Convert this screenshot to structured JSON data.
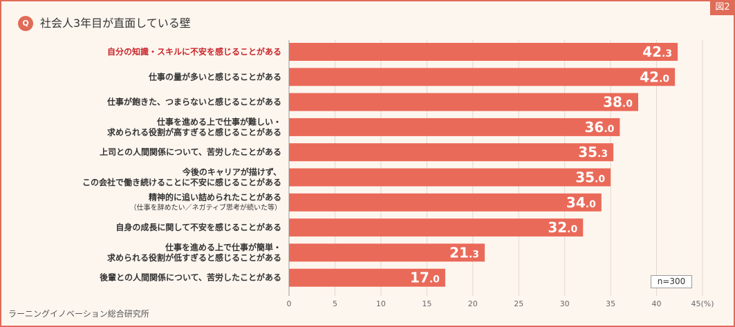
{
  "header": {
    "q_badge": "Q",
    "title": "社会人3年目が直面している壁",
    "figure_label": "図2"
  },
  "footer": {
    "source": "ラーニングイノベーション総合研究所"
  },
  "colors": {
    "bar": "#ea6a59",
    "highlight_text": "#c9262b",
    "frame": "#e06b57"
  },
  "chart_data": {
    "type": "bar",
    "orientation": "horizontal",
    "title": "社会人3年目が直面している壁",
    "sample_size": "n=300",
    "xlim": [
      0,
      45
    ],
    "xticks": [
      "0",
      "5",
      "10",
      "15",
      "20",
      "25",
      "30",
      "35",
      "40",
      "45(%)"
    ],
    "categories": [
      {
        "lines": [
          "自分の知識・スキルに不安を感じることがある"
        ],
        "value": 42.3,
        "int": "42",
        "dec": ".3",
        "highlight": true
      },
      {
        "lines": [
          "仕事の量が多いと感じることがある"
        ],
        "value": 42.0,
        "int": "42",
        "dec": ".0"
      },
      {
        "lines": [
          "仕事が飽きた、つまらないと感じることがある"
        ],
        "value": 38.0,
        "int": "38",
        "dec": ".0"
      },
      {
        "lines": [
          "仕事を進める上で仕事が難しい・",
          "求められる役割が高すぎると感じることがある"
        ],
        "value": 36.0,
        "int": "36",
        "dec": ".0"
      },
      {
        "lines": [
          "上司との人間関係について、苦労したことがある"
        ],
        "value": 35.3,
        "int": "35",
        "dec": ".3"
      },
      {
        "lines": [
          "今後のキャリアが描けず、",
          "この会社で働き続けることに不安に感じることがある"
        ],
        "value": 35.0,
        "int": "35",
        "dec": ".0"
      },
      {
        "lines": [
          "精神的に追い詰められたことがある"
        ],
        "sub": "（仕事を辞めたい／ネガティブ思考が続いた等）",
        "value": 34.0,
        "int": "34",
        "dec": ".0"
      },
      {
        "lines": [
          "自身の成長に関して不安を感じることがある"
        ],
        "value": 32.0,
        "int": "32",
        "dec": ".0"
      },
      {
        "lines": [
          "仕事を進める上で仕事が簡単・",
          "求められる役割が低すぎると感じることがある"
        ],
        "value": 21.3,
        "int": "21",
        "dec": ".3"
      },
      {
        "lines": [
          "後輩との人間関係について、苦労したことがある"
        ],
        "value": 17.0,
        "int": "17",
        "dec": ".0"
      }
    ]
  }
}
